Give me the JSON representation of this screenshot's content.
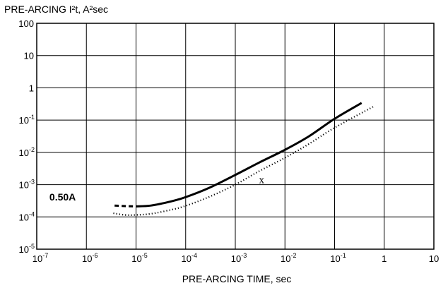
{
  "chart_data": {
    "type": "line",
    "title": "",
    "ylabel": "PRE-ARCING I²t, A²sec",
    "xlabel": "PRE-ARCING TIME, sec",
    "x_scale": "log",
    "y_scale": "log",
    "xlim": [
      1e-07,
      10
    ],
    "ylim": [
      1e-05,
      100
    ],
    "grid": true,
    "x_ticks": [
      {
        "value": 1e-07,
        "base": "10",
        "exp": "-7"
      },
      {
        "value": 1e-06,
        "base": "10",
        "exp": "-6"
      },
      {
        "value": 1e-05,
        "base": "10",
        "exp": "-5"
      },
      {
        "value": 0.0001,
        "base": "10",
        "exp": "-4"
      },
      {
        "value": 0.001,
        "base": "10",
        "exp": "-3"
      },
      {
        "value": 0.01,
        "base": "10",
        "exp": "-2"
      },
      {
        "value": 0.1,
        "base": "10",
        "exp": "-1"
      },
      {
        "value": 1,
        "base": "1",
        "exp": ""
      },
      {
        "value": 10,
        "base": "10",
        "exp": ""
      }
    ],
    "y_ticks": [
      {
        "value": 100,
        "base": "100",
        "exp": ""
      },
      {
        "value": 10,
        "base": "10",
        "exp": ""
      },
      {
        "value": 1,
        "base": "1",
        "exp": ""
      },
      {
        "value": 0.1,
        "base": "10",
        "exp": "-1"
      },
      {
        "value": 0.01,
        "base": "10",
        "exp": "-2"
      },
      {
        "value": 0.001,
        "base": "10",
        "exp": "-3"
      },
      {
        "value": 0.0001,
        "base": "10",
        "exp": "-4"
      },
      {
        "value": 1e-05,
        "base": "10",
        "exp": "-5"
      }
    ],
    "series": [
      {
        "name": "0.50A",
        "style": "solid",
        "color": "#000000",
        "dashed_lead_in": [
          {
            "x": 3.7e-06,
            "y": 0.000225
          },
          {
            "x": 6.5e-06,
            "y": 0.000215
          },
          {
            "x": 1e-05,
            "y": 0.000212
          }
        ],
        "points": [
          {
            "x": 1e-05,
            "y": 0.000212
          },
          {
            "x": 2e-05,
            "y": 0.000225
          },
          {
            "x": 5e-05,
            "y": 0.0003
          },
          {
            "x": 0.0001,
            "y": 0.00041
          },
          {
            "x": 0.0003,
            "y": 0.0008
          },
          {
            "x": 0.001,
            "y": 0.002
          },
          {
            "x": 0.003,
            "y": 0.0048
          },
          {
            "x": 0.01,
            "y": 0.012
          },
          {
            "x": 0.03,
            "y": 0.031
          },
          {
            "x": 0.1,
            "y": 0.11
          },
          {
            "x": 0.35,
            "y": 0.34
          }
        ]
      },
      {
        "name": "",
        "style": "dotted",
        "color": "#000000",
        "points": [
          {
            "x": 3.5e-06,
            "y": 0.00013
          },
          {
            "x": 6e-06,
            "y": 0.000115
          },
          {
            "x": 1e-05,
            "y": 0.000115
          },
          {
            "x": 2e-05,
            "y": 0.000125
          },
          {
            "x": 5e-05,
            "y": 0.000165
          },
          {
            "x": 0.0001,
            "y": 0.00022
          },
          {
            "x": 0.0003,
            "y": 0.00042
          },
          {
            "x": 0.001,
            "y": 0.001
          },
          {
            "x": 0.003,
            "y": 0.0026
          },
          {
            "x": 0.01,
            "y": 0.0068
          },
          {
            "x": 0.03,
            "y": 0.018
          },
          {
            "x": 0.1,
            "y": 0.058
          },
          {
            "x": 0.6,
            "y": 0.26
          }
        ]
      }
    ],
    "annotations": [
      {
        "text": "0.50A",
        "x": 1.8e-07,
        "y": 0.00032,
        "role": "series-label"
      },
      {
        "text": "x",
        "x": 0.003,
        "y": 0.0011,
        "role": "marker-label"
      }
    ]
  }
}
